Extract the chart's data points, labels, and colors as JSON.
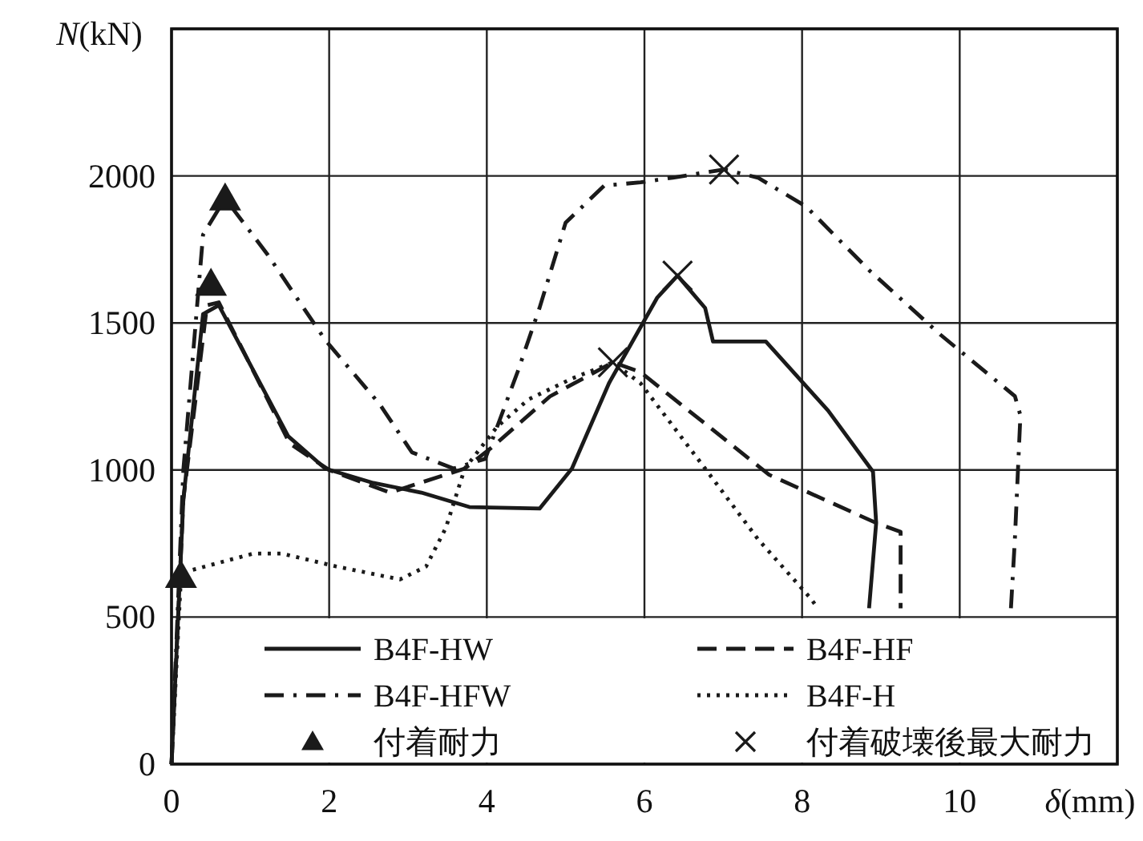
{
  "chart_data": {
    "type": "line",
    "xlabel": "*δ*(mm)",
    "ylabel": "*N*(kN)",
    "xlim": [
      0,
      12
    ],
    "ylim": [
      0,
      2500
    ],
    "xticks": [
      0,
      2,
      4,
      6,
      8,
      10,
      {
        "value": 12,
        "label": null
      }
    ],
    "yticks": [
      0,
      500,
      1000,
      1500,
      2000,
      {
        "value": 2500,
        "label": null
      }
    ],
    "grid": true,
    "legend": "bottom",
    "marker": "none",
    "series": [
      {
        "name": "B4F-HW",
        "color": "#1a1a1a",
        "line_style": "solid",
        "x": [
          0,
          0.15,
          0.4,
          0.6,
          1.48,
          1.95,
          2.56,
          3.17,
          3.78,
          4.67,
          5.08,
          5.55,
          6.16,
          6.42,
          6.77,
          6.87,
          7.54,
          8.33,
          8.9,
          8.94,
          8.85
        ],
        "values": [
          0,
          900,
          1530,
          1560,
          1115,
          1005,
          956,
          923,
          874,
          869,
          1005,
          1295,
          1585,
          1661,
          1551,
          1437,
          1437,
          1202,
          994,
          820,
          530
        ]
      },
      {
        "name": "B4F-HF",
        "color": "#1a1a1a",
        "line_style": "dashed",
        "x": [
          0,
          0.15,
          0.45,
          0.6,
          1.5,
          2.0,
          2.77,
          3.72,
          4.06,
          4.8,
          5.6,
          5.95,
          7.58,
          8.94,
          9.25,
          9.25
        ],
        "values": [
          0,
          900,
          1560,
          1570,
          1090,
          1000,
          923,
          1005,
          1076,
          1250,
          1366,
          1333,
          984,
          820,
          790,
          530
        ]
      },
      {
        "name": "B4F-HFW",
        "color": "#1a1a1a",
        "line_style": "dashdot",
        "x": [
          0,
          0.15,
          0.4,
          0.68,
          1.22,
          1.95,
          2.64,
          3.05,
          3.58,
          3.98,
          4.39,
          4.67,
          5.0,
          5.49,
          5.95,
          6.36,
          7.01,
          7.44,
          8.05,
          8.86,
          9.76,
          10.7,
          10.77,
          10.7,
          10.65
        ],
        "values": [
          0,
          1000,
          1800,
          1923,
          1732,
          1442,
          1224,
          1060,
          1005,
          1038,
          1333,
          1552,
          1841,
          1967,
          1978,
          1994,
          2022,
          1994,
          1896,
          1677,
          1459,
          1251,
          1186,
          765,
          530
        ]
      },
      {
        "name": "B4F-H",
        "color": "#1a1a1a",
        "line_style": "dotted",
        "x": [
          0,
          0.12,
          0.26,
          1.04,
          1.4,
          2.09,
          2.9,
          3.23,
          3.48,
          3.72,
          4.13,
          4.53,
          5.08,
          5.6,
          5.95,
          6.77,
          7.44,
          8.11,
          8.2
        ],
        "values": [
          0,
          640,
          660,
          716,
          716,
          672,
          628,
          672,
          803,
          1005,
          1147,
          1240,
          1311,
          1366,
          1295,
          1005,
          765,
          563,
          530
        ]
      },
      {
        "name": "付着耐力",
        "type": "scatter",
        "marker": "triangle",
        "color": "#1a1a1a",
        "x": [
          0.12,
          0.5,
          0.68
        ],
        "values": [
          640,
          1633,
          1923
        ]
      },
      {
        "name": "付着破壊後最大耐力",
        "type": "scatter",
        "marker": "cross",
        "color": "#1a1a1a",
        "x": [
          5.6,
          6.42,
          7.01
        ],
        "values": [
          1366,
          1661,
          2022
        ]
      }
    ]
  }
}
